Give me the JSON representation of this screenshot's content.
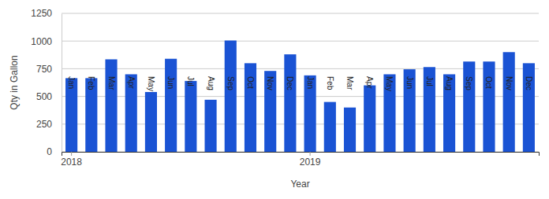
{
  "chart_data": {
    "type": "bar",
    "x_label": "Year",
    "y_label": "Qty in Gallon",
    "categories": [
      "Jan",
      "Feb",
      "Mar",
      "Apr",
      "May",
      "Jun",
      "Jul",
      "Aug",
      "Sep",
      "Oct",
      "Nov",
      "Dec",
      "Jan",
      "Feb",
      "Mar",
      "Apr",
      "May",
      "Jun",
      "Jul",
      "Aug",
      "Sep",
      "Oct",
      "Nov",
      "Dec"
    ],
    "year_labels": [
      "2018",
      null,
      null,
      null,
      null,
      null,
      null,
      null,
      null,
      null,
      null,
      null,
      "2019",
      null,
      null,
      null,
      null,
      null,
      null,
      null,
      null,
      null,
      null,
      null
    ],
    "values": [
      665,
      665,
      835,
      700,
      540,
      840,
      640,
      470,
      1005,
      800,
      730,
      880,
      690,
      450,
      400,
      600,
      700,
      745,
      765,
      700,
      815,
      815,
      900,
      800
    ],
    "color": "#1a53d4",
    "ylim": [
      0,
      1250
    ],
    "yticks": [
      0,
      250,
      500,
      750,
      1000,
      1250
    ],
    "grid": true
  }
}
